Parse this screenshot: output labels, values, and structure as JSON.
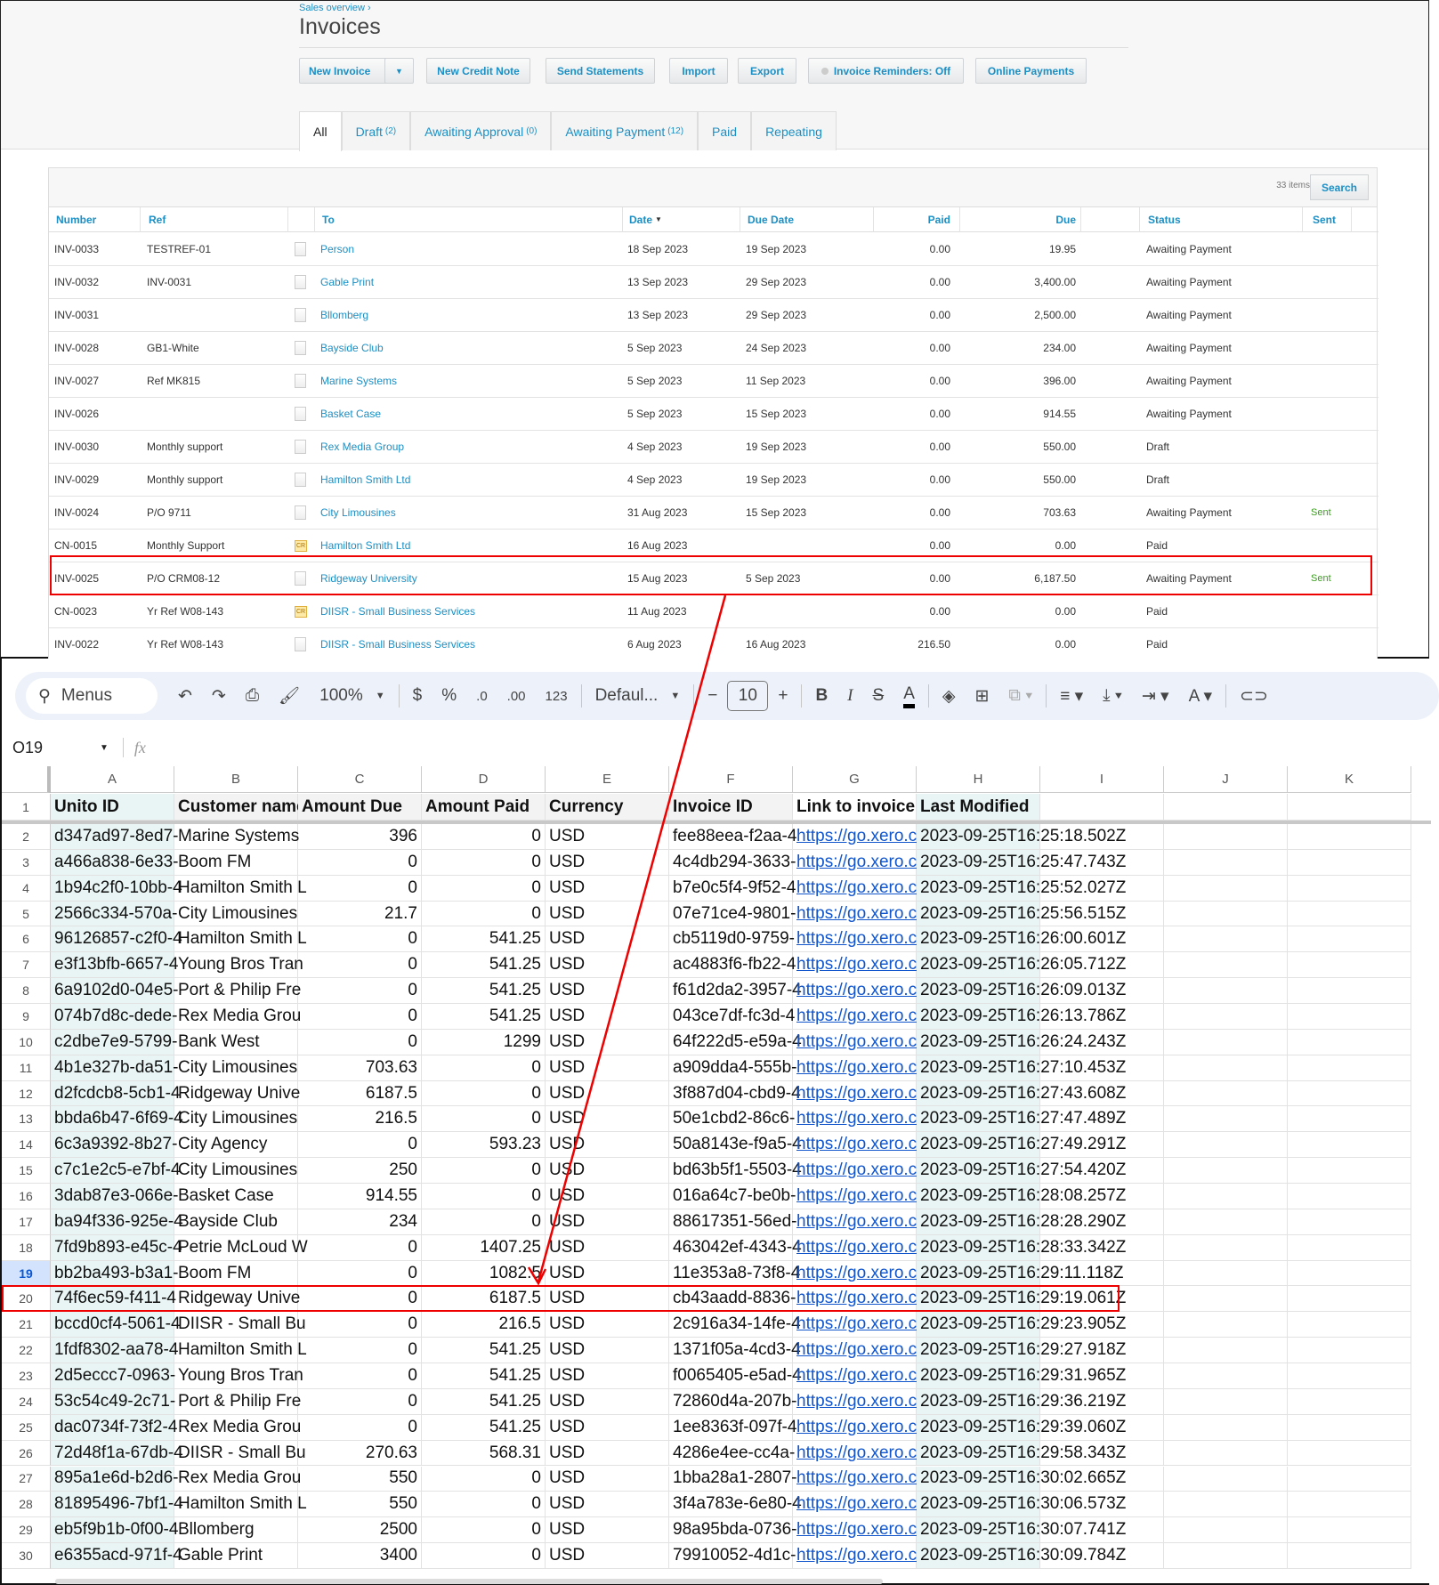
{
  "xero": {
    "breadcrumb": "Sales overview ›",
    "title": "Invoices",
    "buttons": {
      "new_invoice": "New Invoice",
      "new_credit_note": "New Credit Note",
      "send_statements": "Send Statements",
      "import": "Import",
      "export": "Export",
      "invoice_reminders": "Invoice Reminders: Off",
      "online_payments": "Online Payments"
    },
    "tabs": [
      {
        "label": "All",
        "count": ""
      },
      {
        "label": "Draft",
        "count": "(2)"
      },
      {
        "label": "Awaiting Approval",
        "count": "(0)"
      },
      {
        "label": "Awaiting Payment",
        "count": "(12)"
      },
      {
        "label": "Paid",
        "count": ""
      },
      {
        "label": "Repeating",
        "count": ""
      }
    ],
    "items_count": "33 items",
    "search_label": "Search",
    "columns": {
      "number": "Number",
      "ref": "Ref",
      "to": "To",
      "date": "Date",
      "due_date": "Due Date",
      "paid": "Paid",
      "due": "Due",
      "status": "Status",
      "sent": "Sent"
    },
    "rows": [
      {
        "number": "INV-0033",
        "ref": "TESTREF-01",
        "icon": "document",
        "to": "Person",
        "date": "18 Sep 2023",
        "due_date": "19 Sep 2023",
        "paid": "0.00",
        "due": "19.95",
        "status": "Awaiting Payment",
        "sent": ""
      },
      {
        "number": "INV-0032",
        "ref": "INV-0031",
        "icon": "document",
        "to": "Gable Print",
        "date": "13 Sep 2023",
        "due_date": "29 Sep 2023",
        "paid": "0.00",
        "due": "3,400.00",
        "status": "Awaiting Payment",
        "sent": ""
      },
      {
        "number": "INV-0031",
        "ref": "",
        "icon": "document",
        "to": "Bllomberg",
        "date": "13 Sep 2023",
        "due_date": "29 Sep 2023",
        "paid": "0.00",
        "due": "2,500.00",
        "status": "Awaiting Payment",
        "sent": ""
      },
      {
        "number": "INV-0028",
        "ref": "GB1-White",
        "icon": "document",
        "to": "Bayside Club",
        "date": "5 Sep 2023",
        "due_date": "24 Sep 2023",
        "paid": "0.00",
        "due": "234.00",
        "status": "Awaiting Payment",
        "sent": ""
      },
      {
        "number": "INV-0027",
        "ref": "Ref MK815",
        "icon": "document",
        "to": "Marine Systems",
        "date": "5 Sep 2023",
        "due_date": "11 Sep 2023",
        "paid": "0.00",
        "due": "396.00",
        "status": "Awaiting Payment",
        "sent": ""
      },
      {
        "number": "INV-0026",
        "ref": "",
        "icon": "document",
        "to": "Basket Case",
        "date": "5 Sep 2023",
        "due_date": "15 Sep 2023",
        "paid": "0.00",
        "due": "914.55",
        "status": "Awaiting Payment",
        "sent": ""
      },
      {
        "number": "INV-0030",
        "ref": "Monthly support",
        "icon": "document",
        "to": "Rex Media Group",
        "date": "4 Sep 2023",
        "due_date": "19 Sep 2023",
        "paid": "0.00",
        "due": "550.00",
        "status": "Draft",
        "sent": ""
      },
      {
        "number": "INV-0029",
        "ref": "Monthly support",
        "icon": "document",
        "to": "Hamilton Smith Ltd",
        "date": "4 Sep 2023",
        "due_date": "19 Sep 2023",
        "paid": "0.00",
        "due": "550.00",
        "status": "Draft",
        "sent": ""
      },
      {
        "number": "INV-0024",
        "ref": "P/O 9711",
        "icon": "document",
        "to": "City Limousines",
        "date": "31 Aug 2023",
        "due_date": "15 Sep 2023",
        "paid": "0.00",
        "due": "703.63",
        "status": "Awaiting Payment",
        "sent": "Sent"
      },
      {
        "number": "CN-0015",
        "ref": "Monthly Support",
        "icon": "credit-note",
        "to": "Hamilton Smith Ltd",
        "date": "16 Aug 2023",
        "due_date": "",
        "paid": "0.00",
        "due": "0.00",
        "status": "Paid",
        "sent": ""
      },
      {
        "number": "INV-0025",
        "ref": "P/O CRM08-12",
        "icon": "document",
        "to": "Ridgeway University",
        "date": "15 Aug 2023",
        "due_date": "5 Sep 2023",
        "paid": "0.00",
        "due": "6,187.50",
        "status": "Awaiting Payment",
        "sent": "Sent"
      },
      {
        "number": "CN-0023",
        "ref": "Yr Ref W08-143",
        "icon": "credit-note",
        "to": "DIISR - Small Business Services",
        "date": "11 Aug 2023",
        "due_date": "",
        "paid": "0.00",
        "due": "0.00",
        "status": "Paid",
        "sent": ""
      },
      {
        "number": "INV-0022",
        "ref": "Yr Ref W08-143",
        "icon": "document",
        "to": "DIISR - Small Business Services",
        "date": "6 Aug 2023",
        "due_date": "16 Aug 2023",
        "paid": "216.50",
        "due": "0.00",
        "status": "Paid",
        "sent": ""
      }
    ]
  },
  "sheet": {
    "toolbar": {
      "menus": "Menus",
      "zoom": "100%",
      "currency": "$",
      "percent": "%",
      "dec_decrease": ".0",
      "dec_increase": ".00",
      "number_format": "123",
      "font": "Defaul...",
      "font_size": "10"
    },
    "name_box": "O19",
    "fx": "fx",
    "column_letters": [
      "A",
      "B",
      "C",
      "D",
      "E",
      "F",
      "G",
      "H",
      "I",
      "J",
      "K"
    ],
    "headers": [
      "Unito ID",
      "Customer name",
      "Amount Due",
      "Amount Paid",
      "Currency",
      "Invoice ID",
      "Link to invoice",
      "Last Modified"
    ],
    "selected_row": 19,
    "rows": [
      [
        "d347ad97-8ed7-",
        "Marine Systems",
        "396",
        "0",
        "USD",
        "fee88eea-f2aa-4",
        "https://go.xero.c",
        "2023-09-25T16:25:18.502Z"
      ],
      [
        "a466a838-6e33-",
        "Boom FM",
        "0",
        "0",
        "USD",
        "4c4db294-3633-",
        "https://go.xero.c",
        "2023-09-25T16:25:47.743Z"
      ],
      [
        "1b94c2f0-10bb-4",
        "Hamilton Smith L",
        "0",
        "0",
        "USD",
        "b7e0c5f4-9f52-4",
        "https://go.xero.c",
        "2023-09-25T16:25:52.027Z"
      ],
      [
        "2566c334-570a-",
        "City Limousines",
        "21.7",
        "0",
        "USD",
        "07e71ce4-9801-",
        "https://go.xero.c",
        "2023-09-25T16:25:56.515Z"
      ],
      [
        "96126857-c2f0-4",
        "Hamilton Smith L",
        "0",
        "541.25",
        "USD",
        "cb5119d0-9759-",
        "https://go.xero.c",
        "2023-09-25T16:26:00.601Z"
      ],
      [
        "e3f13bfb-6657-4",
        "Young Bros Tran",
        "0",
        "541.25",
        "USD",
        "ac4883f6-fb22-4",
        "https://go.xero.c",
        "2023-09-25T16:26:05.712Z"
      ],
      [
        "6a9102d0-04e5-",
        "Port & Philip Fre",
        "0",
        "541.25",
        "USD",
        "f61d2da2-3957-4",
        "https://go.xero.c",
        "2023-09-25T16:26:09.013Z"
      ],
      [
        "074b7d8c-dede-",
        "Rex Media Grou",
        "0",
        "541.25",
        "USD",
        "043ce7df-fc3d-4",
        "https://go.xero.c",
        "2023-09-25T16:26:13.786Z"
      ],
      [
        "c2dbe7e9-5799-",
        "Bank West",
        "0",
        "1299",
        "USD",
        "64f222d5-e59a-4",
        "https://go.xero.c",
        "2023-09-25T16:26:24.243Z"
      ],
      [
        "4b1e327b-da51-",
        "City Limousines",
        "703.63",
        "0",
        "USD",
        "a909dda4-555b-",
        "https://go.xero.c",
        "2023-09-25T16:27:10.453Z"
      ],
      [
        "d2fcdcb8-5cb1-4",
        "Ridgeway Unive",
        "6187.5",
        "0",
        "USD",
        "3f887d04-cbd9-4",
        "https://go.xero.c",
        "2023-09-25T16:27:43.608Z"
      ],
      [
        "bbda6b47-6f69-4",
        "City Limousines",
        "216.5",
        "0",
        "USD",
        "50e1cbd2-86c6-",
        "https://go.xero.c",
        "2023-09-25T16:27:47.489Z"
      ],
      [
        "6c3a9392-8b27-",
        "City Agency",
        "0",
        "593.23",
        "USD",
        "50a8143e-f9a5-4",
        "https://go.xero.c",
        "2023-09-25T16:27:49.291Z"
      ],
      [
        "c7c1e2c5-e7bf-4",
        "City Limousines",
        "250",
        "0",
        "USD",
        "bd63b5f1-5503-4",
        "https://go.xero.c",
        "2023-09-25T16:27:54.420Z"
      ],
      [
        "3dab87e3-066e-",
        "Basket Case",
        "914.55",
        "0",
        "USD",
        "016a64c7-be0b-",
        "https://go.xero.c",
        "2023-09-25T16:28:08.257Z"
      ],
      [
        "ba94f336-925e-4",
        "Bayside Club",
        "234",
        "0",
        "USD",
        "88617351-56ed-",
        "https://go.xero.c",
        "2023-09-25T16:28:28.290Z"
      ],
      [
        "7fd9b893-e45c-4",
        "Petrie McLoud W",
        "0",
        "1407.25",
        "USD",
        "463042ef-4343-4",
        "https://go.xero.c",
        "2023-09-25T16:28:33.342Z"
      ],
      [
        "bb2ba493-b3a1-",
        "Boom FM",
        "0",
        "1082.5",
        "USD",
        "11e353a8-73f8-4",
        "https://go.xero.c",
        "2023-09-25T16:29:11.118Z"
      ],
      [
        "74f6ec59-f411-4",
        "Ridgeway Unive",
        "0",
        "6187.5",
        "USD",
        "cb43aadd-8836-",
        "https://go.xero.c",
        "2023-09-25T16:29:19.061Z"
      ],
      [
        "bccd0cf4-5061-4",
        "DIISR - Small Bu",
        "0",
        "216.5",
        "USD",
        "2c916a34-14fe-4",
        "https://go.xero.c",
        "2023-09-25T16:29:23.905Z"
      ],
      [
        "1fdf8302-aa78-4",
        "Hamilton Smith L",
        "0",
        "541.25",
        "USD",
        "1371f05a-4cd3-4",
        "https://go.xero.c",
        "2023-09-25T16:29:27.918Z"
      ],
      [
        "2d5eccc7-0963-",
        "Young Bros Tran",
        "0",
        "541.25",
        "USD",
        "f0065405-e5ad-4",
        "https://go.xero.c",
        "2023-09-25T16:29:31.965Z"
      ],
      [
        "53c54c49-2c71-",
        "Port & Philip Fre",
        "0",
        "541.25",
        "USD",
        "72860d4a-207b-",
        "https://go.xero.c",
        "2023-09-25T16:29:36.219Z"
      ],
      [
        "dac0734f-73f2-4",
        "Rex Media Grou",
        "0",
        "541.25",
        "USD",
        "1ee8363f-097f-4",
        "https://go.xero.c",
        "2023-09-25T16:29:39.060Z"
      ],
      [
        "72d48f1a-67db-4",
        "DIISR - Small Bu",
        "270.63",
        "568.31",
        "USD",
        "4286e4ee-cc4a-",
        "https://go.xero.c",
        "2023-09-25T16:29:58.343Z"
      ],
      [
        "895a1e6d-b2d6-",
        "Rex Media Grou",
        "550",
        "0",
        "USD",
        "1bba28a1-2807-",
        "https://go.xero.c",
        "2023-09-25T16:30:02.665Z"
      ],
      [
        "81895496-7bf1-4",
        "Hamilton Smith L",
        "550",
        "0",
        "USD",
        "3f4a783e-6e80-4",
        "https://go.xero.c",
        "2023-09-25T16:30:06.573Z"
      ],
      [
        "eb5f9b1b-0f00-4",
        "Bllomberg",
        "2500",
        "0",
        "USD",
        "98a95bda-0736-",
        "https://go.xero.c",
        "2023-09-25T16:30:07.741Z"
      ],
      [
        "e6355acd-971f-4",
        "Gable Print",
        "3400",
        "0",
        "USD",
        "79910052-4d1c-",
        "https://go.xero.c",
        "2023-09-25T16:30:09.784Z"
      ]
    ]
  },
  "annotation_color": "#e00000"
}
